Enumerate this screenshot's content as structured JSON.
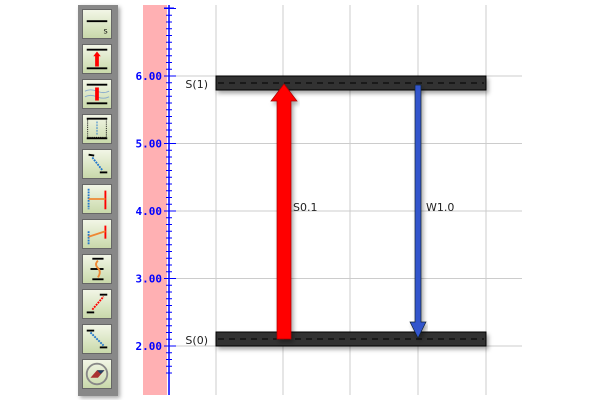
{
  "toolbar": {
    "tools": [
      {
        "name": "level",
        "icon": "energy-level-icon"
      },
      {
        "name": "absorption",
        "icon": "absorption-arrow-icon"
      },
      {
        "name": "absorption-vibronic",
        "icon": "vibronic-absorption-icon"
      },
      {
        "name": "nonradiative-decay",
        "icon": "nonradiative-decay-icon"
      },
      {
        "name": "relaxation",
        "icon": "relaxation-icon"
      },
      {
        "name": "energy-transfer",
        "icon": "energy-transfer-icon"
      },
      {
        "name": "energy-transfer-upconversion",
        "icon": "upconversion-icon"
      },
      {
        "name": "intersystem-crossing",
        "icon": "intersystem-crossing-icon"
      },
      {
        "name": "excitation",
        "icon": "excitation-icon"
      },
      {
        "name": "vibrational-relaxation",
        "icon": "vibrational-relaxation-icon"
      },
      {
        "name": "settings",
        "icon": "compass-icon"
      }
    ]
  },
  "axis": {
    "ticks": [
      "6.00",
      "5.00",
      "4.00",
      "3.00",
      "2.00"
    ],
    "min": 1.55,
    "max": 6.98,
    "color": "#0000ff"
  },
  "levels": [
    {
      "label": "S(1)",
      "energy": 6.0
    },
    {
      "label": "S(0)",
      "energy": 2.0
    }
  ],
  "transitions": [
    {
      "label": "S0.1",
      "from": 2.0,
      "to": 6.0,
      "color": "#ff0000"
    },
    {
      "label": "W1.0",
      "from": 6.0,
      "to": 2.0,
      "color": "#3355cc"
    }
  ],
  "colors": {
    "level": "#333333",
    "strip": "#ffb0b3",
    "grid": "#cccccc"
  }
}
